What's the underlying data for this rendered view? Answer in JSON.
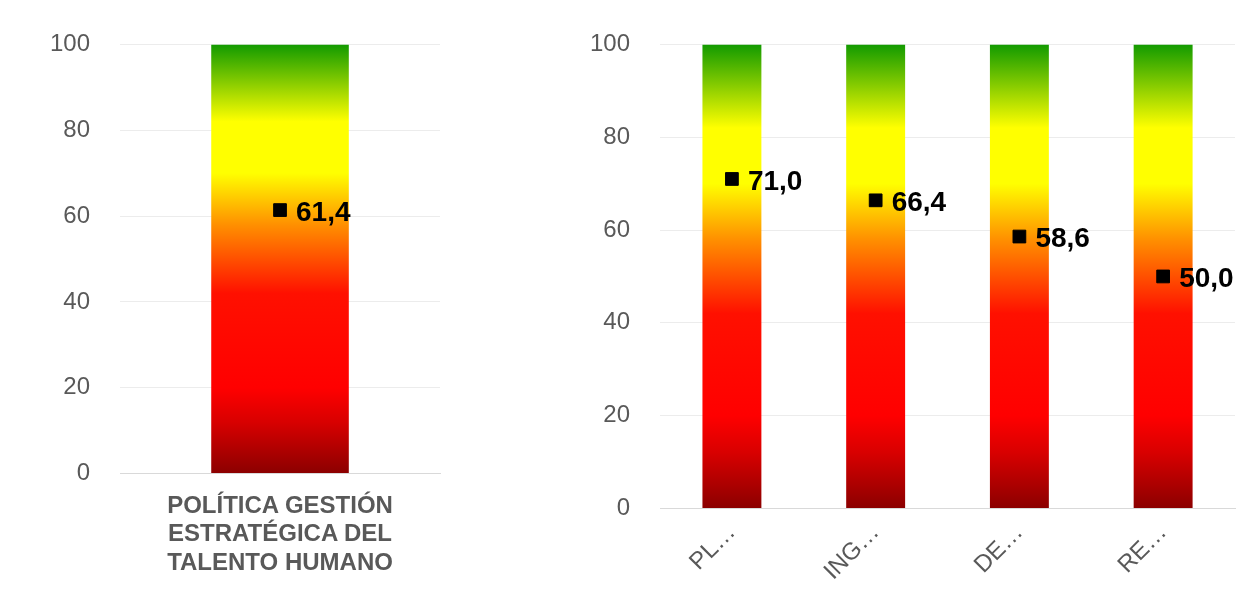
{
  "chart_data": [
    {
      "type": "bar",
      "categories": [
        "POLÍTICA GESTIÓN ESTRATÉGICA DEL TALENTO HUMANO"
      ],
      "ylim": [
        0,
        100
      ],
      "yticks": [
        0,
        20,
        40,
        60,
        80,
        100
      ],
      "grid": "y",
      "legend": false,
      "series": [
        {
          "color": "#ffff00",
          "values": [
            100
          ]
        },
        {
          "type": "scatter",
          "marker": "square",
          "color": "#000000",
          "values": [
            61.4
          ],
          "value_labels": [
            "61,4"
          ]
        }
      ]
    },
    {
      "type": "bar",
      "categories": [
        "PL…",
        "ING…",
        "DE…",
        "RE…"
      ],
      "ylim": [
        0,
        100
      ],
      "yticks": [
        0,
        20,
        40,
        60,
        80,
        100
      ],
      "grid": "y",
      "legend": false,
      "series": [
        {
          "color": "#ffff00",
          "values": [
            100,
            100,
            100,
            100
          ]
        },
        {
          "type": "scatter",
          "marker": "square",
          "color": "#000000",
          "values": [
            71.0,
            66.4,
            58.6,
            50.0
          ],
          "value_labels": [
            "71,0",
            "66,4",
            "58,6",
            "50,0"
          ]
        }
      ]
    }
  ]
}
